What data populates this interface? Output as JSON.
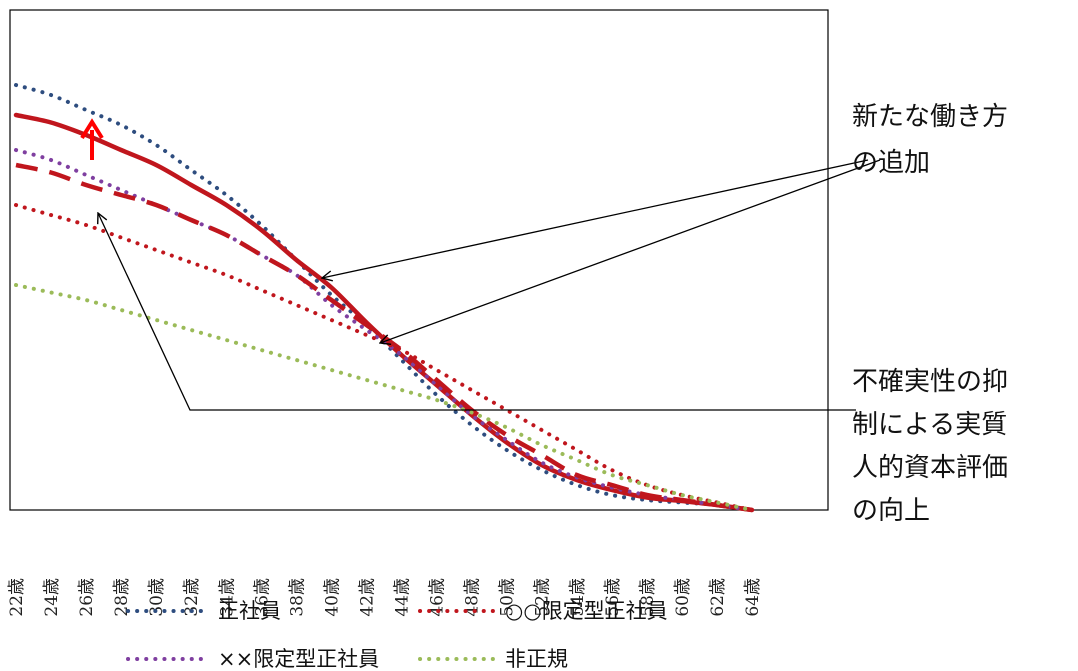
{
  "chart_data": {
    "type": "line",
    "title": "",
    "xlabel": "",
    "ylabel": "",
    "categories": [
      "22歳",
      "24歳",
      "26歳",
      "28歳",
      "30歳",
      "32歳",
      "34歳",
      "36歳",
      "38歳",
      "40歳",
      "42歳",
      "44歳",
      "46歳",
      "48歳",
      "50歳",
      "52歳",
      "54歳",
      "56歳",
      "58歳",
      "60歳",
      "62歳",
      "64歳"
    ],
    "x_ages": [
      22,
      24,
      26,
      28,
      30,
      32,
      34,
      36,
      38,
      40,
      42,
      44,
      46,
      48,
      50,
      52,
      54,
      56,
      58,
      60,
      62,
      64
    ],
    "ylim": [
      0,
      100
    ],
    "grid": false,
    "legend_position": "bottom",
    "series": [
      {
        "name": "正社員",
        "style": "dotted",
        "color": "#2e4d7f",
        "values": [
          85,
          83,
          80,
          77,
          73,
          68,
          63,
          57,
          50,
          43,
          37,
          30,
          23,
          17,
          12,
          8,
          5,
          3,
          2,
          1.5,
          1,
          0
        ]
      },
      {
        "name": "新たな働き方（実線）",
        "style": "solid",
        "color": "#c0161d",
        "in_legend": false,
        "values": [
          79,
          77.5,
          75,
          72,
          69,
          65,
          61,
          56,
          50,
          44.5,
          37.5,
          31,
          25,
          19,
          13.5,
          9,
          6,
          4,
          2.5,
          1.8,
          1,
          0
        ]
      },
      {
        "name": "××限定型正社員",
        "style": "dotted",
        "color": "#7f3fa0",
        "values": [
          72,
          70,
          67,
          64,
          61,
          58,
          55,
          51,
          47,
          41,
          36,
          31,
          25,
          19,
          14,
          9.5,
          6.5,
          4.5,
          3,
          2,
          1,
          0
        ]
      },
      {
        "name": "新たな働き方（破線）",
        "style": "dashed",
        "color": "#c0161d",
        "in_legend": false,
        "values": [
          69,
          67.5,
          65,
          63,
          61,
          58,
          55,
          51,
          47,
          42,
          37,
          32,
          26,
          20,
          15,
          11,
          7,
          5,
          3,
          2,
          1,
          0
        ]
      },
      {
        "name": "○○限定型正社員",
        "style": "dotted",
        "color": "#c0161d",
        "values": [
          61,
          59,
          57,
          54.5,
          52,
          49.5,
          47,
          44,
          41,
          38,
          35,
          32,
          28,
          24,
          20,
          16,
          12,
          8,
          5,
          3,
          1.5,
          0
        ]
      },
      {
        "name": "非正規",
        "style": "dotted",
        "color": "#9bbb59",
        "values": [
          45,
          43.5,
          42,
          40,
          38,
          36,
          34,
          32,
          30,
          28,
          26,
          24,
          22,
          19.5,
          16.5,
          13,
          10,
          7,
          5,
          3,
          1.5,
          0
        ]
      }
    ],
    "annotations": [
      {
        "id": "new-work",
        "lines": [
          "新たな働き方",
          "の追加"
        ]
      },
      {
        "id": "uncertainty",
        "lines": [
          "不確実性の抑",
          "制による実質",
          "人的資本評価",
          "の向上"
        ]
      }
    ]
  },
  "legend": {
    "row1": [
      {
        "label": "正社員",
        "color": "#2e4d7f"
      },
      {
        "label": "○○限定型正社員",
        "color": "#c0161d"
      }
    ],
    "row2": [
      {
        "label": "××限定型正社員",
        "color": "#7f3fa0"
      },
      {
        "label": "非正規",
        "color": "#9bbb59"
      }
    ]
  },
  "colors": {
    "arrow_up": "#ff0000",
    "frame": "#000000"
  }
}
